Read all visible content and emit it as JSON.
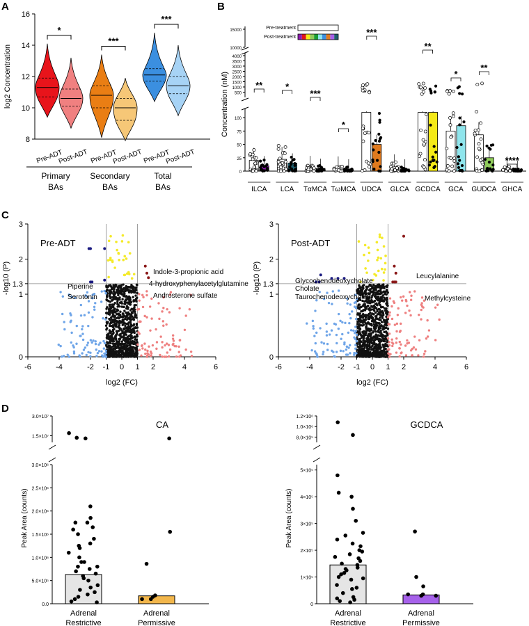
{
  "panels": {
    "A": {
      "label": "A"
    },
    "B": {
      "label": "B"
    },
    "C": {
      "label": "C"
    },
    "D": {
      "label": "D"
    }
  },
  "chart_data": [
    {
      "panel": "A",
      "type": "violin",
      "ylabel": "log2 Concentration",
      "ylim": [
        8,
        16
      ],
      "yticks": [
        8,
        10,
        12,
        14,
        16
      ],
      "colors": {
        "pre_primary": "#e8141b",
        "post_primary": "#f08080",
        "pre_secondary": "#ea7e14",
        "post_secondary": "#f6c777",
        "pre_total": "#3b8fe0",
        "post_total": "#a7d3f5"
      },
      "groups": [
        {
          "name": "Primary BAs",
          "group_label_lines": [
            "Primary",
            "BAs"
          ],
          "violins": [
            {
              "label": "Pre-ADT",
              "min": 9.4,
              "max": 14.1,
              "median": 11.3,
              "q1": 10.7,
              "q3": 11.9,
              "color": "#e8141b"
            },
            {
              "label": "Post-ADT",
              "min": 8.7,
              "max": 13.2,
              "median": 10.6,
              "q1": 10.1,
              "q3": 11.2,
              "color": "#f08080"
            }
          ],
          "significance": "*"
        },
        {
          "name": "Secondary BAs",
          "group_label_lines": [
            "Secondary",
            "BAs"
          ],
          "violins": [
            {
              "label": "Pre-ADT",
              "min": 8.1,
              "max": 13.4,
              "median": 10.8,
              "q1": 10.0,
              "q3": 11.4,
              "color": "#ea7e14"
            },
            {
              "label": "Post-ADT",
              "min": 7.9,
              "max": 11.9,
              "median": 10.0,
              "q1": 9.2,
              "q3": 10.6,
              "color": "#f6c777"
            }
          ],
          "significance": "***"
        },
        {
          "name": "Total BAs",
          "group_label_lines": [
            "Total",
            "BAs"
          ],
          "violins": [
            {
              "label": "Pre-ADT",
              "min": 10.4,
              "max": 14.8,
              "median": 12.1,
              "q1": 11.7,
              "q3": 12.5,
              "color": "#3b8fe0"
            },
            {
              "label": "Post-ADT",
              "min": 9.5,
              "max": 14.0,
              "median": 11.4,
              "q1": 10.9,
              "q3": 12.0,
              "color": "#a7d3f5"
            }
          ],
          "significance": "***"
        }
      ]
    },
    {
      "panel": "B",
      "type": "bar",
      "ylabel": "Concentration (nM)",
      "legend": {
        "entries": [
          "Pre-treatment",
          "Post-treatment"
        ],
        "placement": "top-left"
      },
      "axis_break": {
        "top_ticks": [
          10000,
          15000
        ],
        "mid_ticks": [
          500,
          1000,
          1500,
          2000,
          2500,
          3000,
          3500,
          4000
        ],
        "bottom_ticks": [
          0,
          25,
          50,
          75,
          100
        ]
      },
      "categories": [
        "ILCA",
        "LCA",
        "TαMCA",
        "TωMCA",
        "UDCA",
        "GLCA",
        "GCDCA",
        "GCA",
        "GUDCA",
        "GHCA"
      ],
      "pre_values": [
        20,
        22,
        5,
        4,
        110,
        8,
        110,
        75,
        68,
        4
      ],
      "post_values": [
        10,
        15,
        5,
        4,
        50,
        4,
        110,
        85,
        25,
        2
      ],
      "post_colors": [
        "#8e1bb0",
        "#1f5f6e",
        "#555555",
        "#555555",
        "#e07a1e",
        "#555555",
        "#f5ea17",
        "#8fe5ec",
        "#8fcb5a",
        "#555555"
      ],
      "significance": [
        {
          "category": "ILCA",
          "label": "**",
          "color": "#e0141b"
        },
        {
          "category": "LCA",
          "label": "*",
          "color": "#e0141b"
        },
        {
          "category": "TαMCA",
          "label": "***",
          "color": "#1a9c34"
        },
        {
          "category": "TωMCA",
          "label": "*",
          "color": "#1a9c34"
        },
        {
          "category": "UDCA",
          "label": "***",
          "color": "#e0141b"
        },
        {
          "category": "GCDCA",
          "label": "**",
          "color": "#e0141b"
        },
        {
          "category": "GCA",
          "label": "*",
          "color": "#e0141b"
        },
        {
          "category": "GUDCA",
          "label": "**",
          "color": "#e0141b"
        },
        {
          "category": "GHCA",
          "label": "****",
          "color": "#e0141b"
        }
      ]
    },
    {
      "panel": "C",
      "type": "scatter",
      "title": "Pre-ADT",
      "xlabel": "log2 (FC)",
      "ylabel": "-log10 (P)",
      "xlim": [
        -6,
        6
      ],
      "ylim": [
        0,
        3
      ],
      "xticks": [
        -6,
        -4,
        -2,
        -1,
        0,
        1,
        2,
        4,
        6
      ],
      "yticks": [
        0,
        1,
        1.3,
        2,
        3
      ],
      "threshold_lines": {
        "x": [
          -1,
          1
        ],
        "y": 1.3
      },
      "labeled_points": [
        {
          "label": "Indole-3-propionic acid",
          "x": 1.5,
          "y": 1.8
        },
        {
          "label": "4-hydroxyphenylacetylglutamine",
          "x": 1.6,
          "y": 1.6
        },
        {
          "label": "Androsterone sulfate",
          "x": 1.7,
          "y": 1.47
        },
        {
          "label": "Piperine",
          "x": -2.1,
          "y": 1.35
        },
        {
          "label": "Serotonin",
          "x": -1.9,
          "y": 1.35
        }
      ],
      "significant_down": [
        {
          "x": -2.1,
          "y": 2.3
        },
        {
          "x": -2.0,
          "y": 2.3
        },
        {
          "x": -1.1,
          "y": 2.3
        },
        {
          "x": -2.0,
          "y": 1.35
        },
        {
          "x": -1.9,
          "y": 1.35
        },
        {
          "x": -1.1,
          "y": 1.4
        }
      ],
      "significant_up": [
        {
          "x": 1.5,
          "y": 1.8
        },
        {
          "x": 1.6,
          "y": 1.6
        },
        {
          "x": 1.7,
          "y": 1.47
        }
      ]
    },
    {
      "panel": "C",
      "type": "scatter",
      "title": "Post-ADT",
      "xlabel": "log2 (FC)",
      "ylabel": "-log10 (P)",
      "xlim": [
        -6,
        6
      ],
      "ylim": [
        0,
        3
      ],
      "xticks": [
        -6,
        -4,
        -2,
        -1,
        0,
        1,
        2,
        4,
        6
      ],
      "yticks": [
        0,
        1,
        1.3,
        2,
        3
      ],
      "threshold_lines": {
        "x": [
          -1,
          1
        ],
        "y": 1.3
      },
      "labeled_points": [
        {
          "label": "Glycochenodeoxycholate",
          "x": -3.3,
          "y": 1.55
        },
        {
          "label": "Cholate",
          "x": -3.0,
          "y": 1.4
        },
        {
          "label": "Taurochenodeoxycholate",
          "x": -2.6,
          "y": 1.4
        },
        {
          "label": "Leucylalanine",
          "x": 1.4,
          "y": 1.8
        },
        {
          "label": "Methylcysteine",
          "x": 1.5,
          "y": 1.35
        }
      ],
      "significant_down": [
        {
          "x": -3.3,
          "y": 1.55
        },
        {
          "x": -3.6,
          "y": 1.35
        },
        {
          "x": -3.4,
          "y": 1.35
        },
        {
          "x": -2.6,
          "y": 1.45
        },
        {
          "x": -2.2,
          "y": 1.45
        },
        {
          "x": -1.8,
          "y": 1.45
        }
      ],
      "significant_up": [
        {
          "x": 2.0,
          "y": 2.65
        },
        {
          "x": 1.4,
          "y": 1.8
        },
        {
          "x": 1.5,
          "y": 1.6
        },
        {
          "x": 1.3,
          "y": 1.35
        },
        {
          "x": 1.4,
          "y": 1.35
        },
        {
          "x": 1.5,
          "y": 1.35
        }
      ]
    },
    {
      "panel": "D",
      "type": "bar",
      "title": "CA",
      "ylabel": "Peak Area (counts)",
      "categories": [
        [
          "Adrenal",
          "Restrictive"
        ],
        [
          "Adrenal",
          "Permissive"
        ]
      ],
      "values": [
        630000,
        170000
      ],
      "colors": [
        "#e5e5e5",
        "#f2b64b"
      ],
      "yticks_bottom": [
        {
          "v": 0,
          "t": "0.0"
        },
        {
          "v": 500000,
          "t": "5.0×10⁵"
        },
        {
          "v": 1000000,
          "t": "1.0×10⁶"
        },
        {
          "v": 1500000,
          "t": "1.5×10⁶"
        },
        {
          "v": 2000000,
          "t": "2.0×10⁶"
        },
        {
          "v": 2500000,
          "t": "2.5×10⁶"
        },
        {
          "v": 3000000,
          "t": "3.0×10⁶"
        }
      ],
      "yticks_top": [
        {
          "v": 15000000,
          "t": "1.5×10⁷"
        },
        {
          "v": 30000000,
          "t": "3.0×10⁷"
        }
      ],
      "points_group1": [
        150000,
        100000,
        30000,
        300000,
        500000,
        700000,
        400000,
        900000,
        1200000,
        600000,
        800000,
        1300000,
        1000000,
        200000,
        750000,
        1100000,
        650000,
        350000,
        250000,
        1600000,
        1750000,
        1500000,
        1400000,
        1750000,
        1650000,
        1250000,
        800000,
        2100000,
        50000,
        1850000,
        550000,
        900000,
        13500000,
        13000000,
        17000000
      ],
      "points_group2": [
        150000,
        100000,
        100000,
        180000,
        860000,
        1550000,
        13000000
      ]
    },
    {
      "panel": "D",
      "type": "bar",
      "title": "GCDCA",
      "ylabel": "Peak Area (counts)",
      "categories": [
        [
          "Adrenal",
          "Restrictive"
        ],
        [
          "Adrenal",
          "Permissive"
        ]
      ],
      "values": [
        145000,
        33000
      ],
      "colors": [
        "#e5e5e5",
        "#a661ea"
      ],
      "yticks_bottom": [
        {
          "v": 0,
          "t": "0"
        },
        {
          "v": 100000,
          "t": "1×10⁵"
        },
        {
          "v": 200000,
          "t": "2×10⁵"
        },
        {
          "v": 300000,
          "t": "3×10⁵"
        },
        {
          "v": 400000,
          "t": "4×10⁵"
        },
        {
          "v": 500000,
          "t": "5×10⁵"
        }
      ],
      "yticks_top": [
        {
          "v": 800000,
          "t": "8.0×10⁵"
        },
        {
          "v": 1000000,
          "t": "1.0×10⁶"
        },
        {
          "v": 1200000,
          "t": "1.2×10⁶"
        }
      ],
      "points_group1": [
        5000,
        10000,
        15000,
        25000,
        40000,
        55000,
        70000,
        90000,
        100000,
        115000,
        125000,
        135000,
        145000,
        150000,
        160000,
        170000,
        185000,
        200000,
        215000,
        225000,
        240000,
        255000,
        265000,
        20000,
        60000,
        95000,
        110000,
        130000,
        175000,
        195000,
        310000,
        355000,
        400000,
        415000,
        480000,
        840000,
        1080000
      ],
      "points_group2": [
        30000,
        30000,
        35000,
        35000,
        65000,
        100000,
        270000
      ]
    }
  ]
}
